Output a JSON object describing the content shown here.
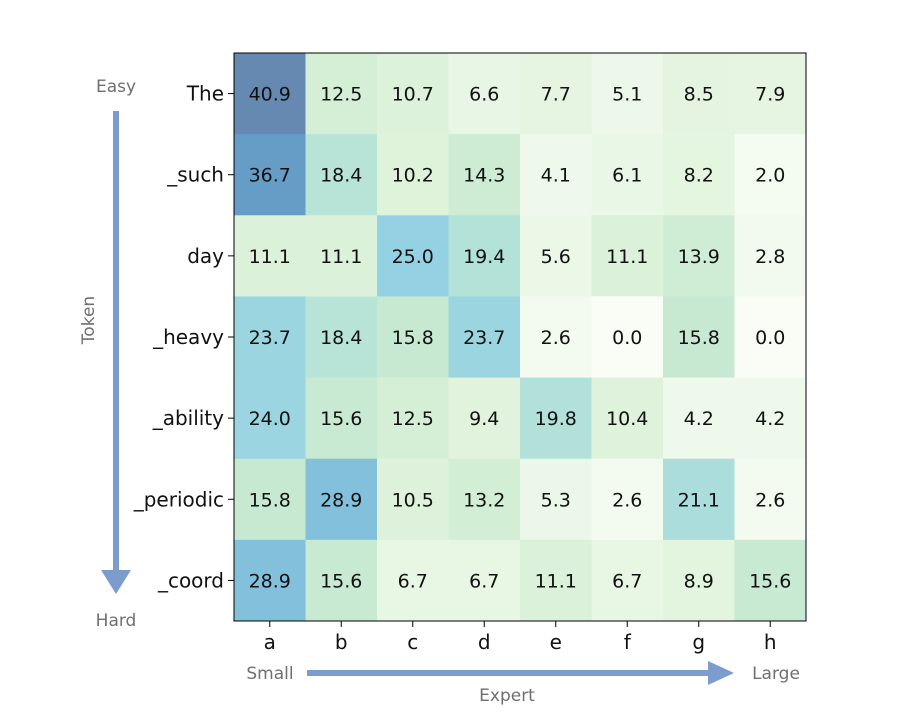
{
  "chart_data": {
    "type": "heatmap",
    "title": "",
    "xlabel": "Expert",
    "ylabel": "Token",
    "x_categories": [
      "a",
      "b",
      "c",
      "d",
      "e",
      "f",
      "g",
      "h"
    ],
    "y_categories": [
      "The",
      "_such",
      "day",
      "_heavy",
      "_ability",
      "_periodic",
      "_coord"
    ],
    "values": [
      [
        40.9,
        12.5,
        10.7,
        6.6,
        7.7,
        5.1,
        8.5,
        7.9
      ],
      [
        36.7,
        18.4,
        10.2,
        14.3,
        4.1,
        6.1,
        8.2,
        2.0
      ],
      [
        11.1,
        11.1,
        25.0,
        19.4,
        5.6,
        11.1,
        13.9,
        2.8
      ],
      [
        23.7,
        18.4,
        15.8,
        23.7,
        2.6,
        0.0,
        15.8,
        0.0
      ],
      [
        24.0,
        15.6,
        12.5,
        9.4,
        19.8,
        10.4,
        4.2,
        4.2
      ],
      [
        15.8,
        28.9,
        10.5,
        13.2,
        5.3,
        2.6,
        21.1,
        2.6
      ],
      [
        28.9,
        15.6,
        6.7,
        6.7,
        11.1,
        6.7,
        8.9,
        15.6
      ]
    ],
    "value_range": [
      0,
      40.9
    ],
    "colormap": "GnBu",
    "y_arrow": {
      "start_label": "Easy",
      "end_label": "Hard"
    },
    "x_arrow": {
      "start_label": "Small",
      "end_label": "Large"
    },
    "arrow_color": "#7b9ccc"
  }
}
